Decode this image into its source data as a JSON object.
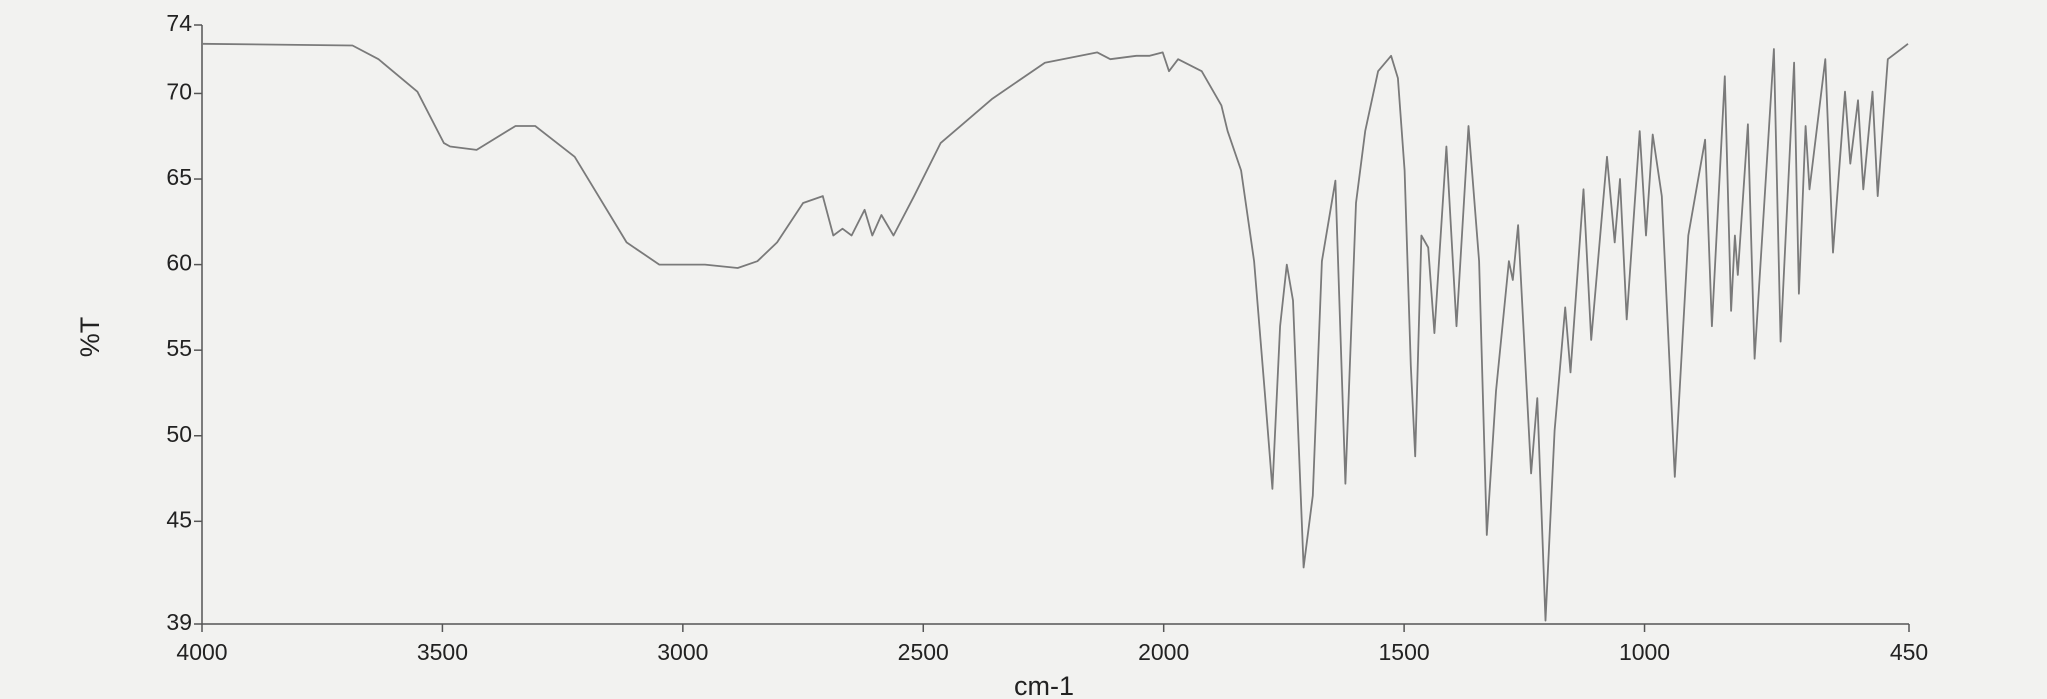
{
  "chart_data": {
    "type": "line",
    "x_label": "cm-1",
    "y_label": "%T",
    "xlim": [
      4000,
      450
    ],
    "ylim": [
      39,
      74
    ],
    "xticks": [
      4000,
      3500,
      3000,
      2500,
      2000,
      1500,
      1000,
      450
    ],
    "yticks": [
      39,
      45,
      50,
      55,
      60,
      65,
      70,
      74
    ],
    "grid": false,
    "series": [
      {
        "color": "#7a7a7a",
        "x": [
          4000,
          3687,
          3633,
          3552,
          3497,
          3484,
          3429,
          3348,
          3307,
          3225,
          3117,
          3049,
          2954,
          2886,
          2845,
          2804,
          2750,
          2709,
          2687,
          2668,
          2649,
          2622,
          2606,
          2587,
          2562,
          2519,
          2464,
          2356,
          2247,
          2138,
          2111,
          2057,
          2029,
          2002,
          1989,
          1970,
          1921,
          1880,
          1867,
          1839,
          1812,
          1790,
          1774,
          1758,
          1744,
          1731,
          1709,
          1690,
          1671,
          1643,
          1622,
          1600,
          1581,
          1554,
          1527,
          1513,
          1499,
          1486,
          1477,
          1464,
          1450,
          1437,
          1412,
          1391,
          1366,
          1344,
          1328,
          1309,
          1282,
          1274,
          1263,
          1236,
          1223,
          1206,
          1187,
          1165,
          1154,
          1127,
          1111,
          1078,
          1062,
          1051,
          1037,
          1010,
          997,
          983,
          964,
          937,
          909,
          874,
          860,
          833,
          820,
          812,
          806,
          785,
          771,
          731,
          717,
          689,
          679,
          665,
          657,
          624,
          608,
          583,
          572,
          556,
          545,
          526,
          515,
          494,
          452
        ],
        "values": [
          72.9,
          72.8,
          72.0,
          70.1,
          67.1,
          66.9,
          66.7,
          68.1,
          68.1,
          66.3,
          61.3,
          60.0,
          60.0,
          59.8,
          60.2,
          61.3,
          63.6,
          64.0,
          61.7,
          62.1,
          61.7,
          63.2,
          61.7,
          62.9,
          61.7,
          64.0,
          67.1,
          69.7,
          71.8,
          72.4,
          72.0,
          72.2,
          72.2,
          72.4,
          71.3,
          72.0,
          71.3,
          69.3,
          67.8,
          65.5,
          60.2,
          52.6,
          46.9,
          56.4,
          60.0,
          57.9,
          42.3,
          46.5,
          60.2,
          64.9,
          47.2,
          63.6,
          67.8,
          71.3,
          72.2,
          70.9,
          65.5,
          54.1,
          48.8,
          61.7,
          61.0,
          56.0,
          66.9,
          56.4,
          68.1,
          60.2,
          44.2,
          52.6,
          60.2,
          59.1,
          62.3,
          47.8,
          52.2,
          39.2,
          50.3,
          57.5,
          53.7,
          64.4,
          55.6,
          66.3,
          61.3,
          65.0,
          56.8,
          67.8,
          61.7,
          67.6,
          64.0,
          47.6,
          61.7,
          67.3,
          56.4,
          71.0,
          57.3,
          61.7,
          59.4,
          68.2,
          54.5,
          72.6,
          55.5,
          71.8,
          58.3,
          68.1,
          64.4,
          72.0,
          60.7,
          70.1,
          65.9,
          69.6,
          64.4,
          70.1,
          64.0,
          72.0,
          72.9
        ]
      }
    ]
  }
}
